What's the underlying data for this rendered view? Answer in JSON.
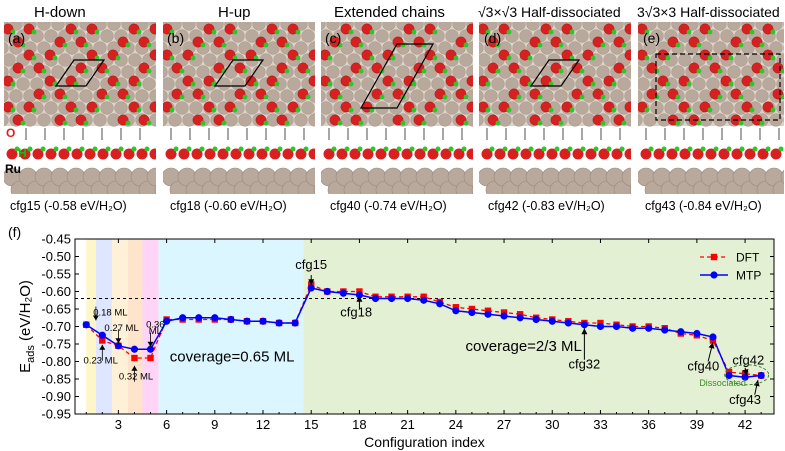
{
  "panels": [
    {
      "label": "(a)",
      "title": "H-down",
      "caption": "cfg15 (-0.58 eV/H₂O)"
    },
    {
      "label": "(b)",
      "title": "H-up",
      "caption": "cfg18 (-0.60 eV/H₂O)"
    },
    {
      "label": "(c)",
      "title": "Extended chains",
      "caption": "cfg40 (-0.74 eV/H₂O)"
    },
    {
      "label": "(d)",
      "title": "√3×√3 Half-dissociated",
      "caption": "cfg42 (-0.83 eV/H₂O)"
    },
    {
      "label": "(e)",
      "title": "3√3×3 Half-dissociated",
      "caption": "cfg43 (-0.84 eV/H₂O)"
    }
  ],
  "side_labels": {
    "o": "O",
    "h": "H",
    "ru": "Ru"
  },
  "colors": {
    "ru": "#b9a89c",
    "o": "#d92020",
    "h": "#28c828",
    "dft": "#ff0000",
    "mtp": "#0000ff"
  },
  "chart_data": {
    "type": "line",
    "panel_label": "(f)",
    "xlabel": "Configuration index",
    "ylabel": "E_ads (eV/H₂O)",
    "xlim": [
      0.3,
      43.8
    ],
    "ylim": [
      -0.95,
      -0.45
    ],
    "xticks": [
      3,
      6,
      9,
      12,
      15,
      18,
      21,
      24,
      27,
      30,
      33,
      36,
      39,
      42
    ],
    "yticks": [
      -0.45,
      -0.5,
      -0.55,
      -0.6,
      -0.65,
      -0.7,
      -0.75,
      -0.8,
      -0.85,
      -0.9,
      -0.95
    ],
    "ref_line": -0.62,
    "x": [
      1,
      2,
      3,
      4,
      5,
      6,
      7,
      8,
      9,
      10,
      11,
      12,
      13,
      14,
      15,
      16,
      17,
      18,
      19,
      20,
      21,
      22,
      23,
      24,
      25,
      26,
      27,
      28,
      29,
      30,
      31,
      32,
      33,
      34,
      35,
      36,
      37,
      38,
      39,
      40,
      41,
      42,
      43
    ],
    "series": [
      {
        "name": "DFT",
        "values": [
          -0.695,
          -0.74,
          -0.755,
          -0.79,
          -0.79,
          -0.68,
          -0.68,
          -0.68,
          -0.68,
          -0.68,
          -0.685,
          -0.685,
          -0.69,
          -0.69,
          -0.58,
          -0.6,
          -0.6,
          -0.6,
          -0.615,
          -0.615,
          -0.615,
          -0.615,
          -0.63,
          -0.645,
          -0.65,
          -0.655,
          -0.66,
          -0.665,
          -0.675,
          -0.68,
          -0.685,
          -0.69,
          -0.69,
          -0.695,
          -0.7,
          -0.7,
          -0.705,
          -0.72,
          -0.725,
          -0.74,
          -0.83,
          -0.835,
          -0.84
        ]
      },
      {
        "name": "MTP",
        "values": [
          -0.695,
          -0.725,
          -0.755,
          -0.765,
          -0.765,
          -0.685,
          -0.675,
          -0.675,
          -0.675,
          -0.68,
          -0.685,
          -0.685,
          -0.69,
          -0.69,
          -0.59,
          -0.6,
          -0.605,
          -0.61,
          -0.62,
          -0.62,
          -0.62,
          -0.625,
          -0.635,
          -0.655,
          -0.66,
          -0.665,
          -0.67,
          -0.675,
          -0.68,
          -0.685,
          -0.69,
          -0.695,
          -0.7,
          -0.7,
          -0.705,
          -0.705,
          -0.71,
          -0.715,
          -0.72,
          -0.73,
          -0.84,
          -0.845,
          -0.84
        ]
      }
    ],
    "regions": [
      {
        "from": 1,
        "to": 1.6,
        "color": "#fff6c8"
      },
      {
        "from": 1.6,
        "to": 2.6,
        "color": "#dfe6ff"
      },
      {
        "from": 2.6,
        "to": 3.6,
        "color": "#fff1d8"
      },
      {
        "from": 3.6,
        "to": 4.5,
        "color": "#ffe4cc"
      },
      {
        "from": 4.5,
        "to": 5.5,
        "color": "#ffd4f6"
      },
      {
        "from": 5.5,
        "to": 14.5,
        "color": "#dcf6ff"
      },
      {
        "from": 14.5,
        "to": 43.8,
        "color": "#e4f0d4"
      }
    ],
    "coverage_labels": [
      {
        "text": "0.18 ML",
        "x": 2.5,
        "y": -0.668
      },
      {
        "text": "0.27 ML",
        "x": 3.2,
        "y": -0.713
      },
      {
        "text": "0.36",
        "x": 5.3,
        "y": -0.703
      },
      {
        "text": "ML",
        "x": 5.3,
        "y": -0.722
      },
      {
        "text": "0.23 ML",
        "x": 1.9,
        "y": -0.806
      },
      {
        "text": "0.32 ML",
        "x": 4.1,
        "y": -0.852
      }
    ],
    "region_labels": [
      {
        "text": "coverage=0.65 ML",
        "x": 6.2,
        "y": -0.8
      },
      {
        "text": "coverage=2/3 ML",
        "x": 24.6,
        "y": -0.77
      }
    ],
    "annotations": [
      {
        "text": "cfg15",
        "x": 15.0,
        "y": -0.535
      },
      {
        "text": "cfg18",
        "x": 17.8,
        "y": -0.671
      },
      {
        "text": "cfg32",
        "x": 32.0,
        "y": -0.82
      },
      {
        "text": "cfg40",
        "x": 39.4,
        "y": -0.825
      },
      {
        "text": "cfg42",
        "x": 42.2,
        "y": -0.808
      },
      {
        "text": "cfg43",
        "x": 42.0,
        "y": -0.922
      },
      {
        "text": "Dissociated",
        "x": 40.6,
        "y": -0.87
      }
    ],
    "legend": "top-right"
  }
}
